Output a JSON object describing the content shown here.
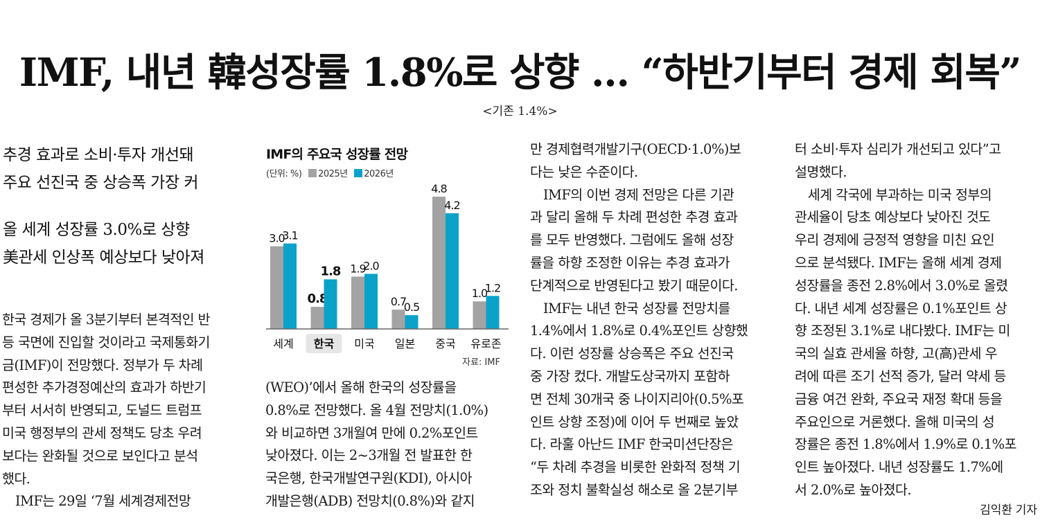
{
  "headline": "IMF, 내년 韓성장률 1.8%로 상향 … “하반기부터 경제 회복”",
  "subnote": "<기존 1.4%>",
  "deck1": [
    "추경 효과로 소비·투자 개선돼",
    "주요 선진국 중 상승폭 가장 커"
  ],
  "deck2": [
    "올 세계 성장률 3.0%로 상향",
    "美관세 인상폭 예상보다 낮아져"
  ],
  "column1": [
    "한국 경제가 올 3분기부터 본격적인 반",
    "등 국면에 진입할 것이라고 국제통화기",
    "금(IMF)이 전망했다. 정부가 두 차례",
    "편성한 추가경정예산의 효과가 하반기",
    "부터 서서히 반영되고, 도널드 트럼프",
    "미국 행정부의 관세 정책도 당초 우려",
    "보다는 완화될 것으로 보인다고 분석",
    "했다.",
    "　IMF는 29일 ‘7월 세계경제전망"
  ],
  "column2": [
    "(WEO)’에서 올해 한국의 성장률을",
    "0.8%로 전망했다. 올 4월 전망치(1.0%)",
    "와 비교하면 3개월여 만에 0.2%포인트",
    "낮아졌다. 이는 2~3개월 전 발표한 한",
    "국은행, 한국개발연구원(KDI), 아시아",
    "개발은행(ADB) 전망치(0.8%)와 같지"
  ],
  "column3": [
    "만 경제협력개발기구(OECD·1.0%)보",
    "다는 낮은 수준이다.",
    "　IMF의 이번 경제 전망은 다른 기관",
    "과 달리 올해 두 차례 편성한 추경 효과",
    "를 모두 반영했다. 그럼에도 올해 성장",
    "률을 하향 조정한 이유는 추경 효과가",
    "단계적으로 반영된다고 봤기 때문이다.",
    "　IMF는 내년 한국 성장률 전망치를",
    "1.4%에서 1.8%로 0.4%포인트 상향했",
    "다. 이런 성장률 상승폭은 주요 선진국",
    "중 가장 컸다. 개발도상국까지 포함하",
    "면 전체 30개국 중 나이지리아(0.5%포",
    "인트 상향 조정)에 이어 두 번째로 높았",
    "다. 라훌 아난드 IMF 한국미션단장은",
    "“두 차례 추경을 비롯한 완화적 정책 기",
    "조와 정치 불확실성 해소로 올 2분기부"
  ],
  "column4": [
    "터 소비·투자 심리가 개선되고 있다”고",
    "설명했다.",
    "　세계 각국에 부과하는 미국 정부의",
    "관세율이 당초 예상보다 낮아진 것도",
    "우리 경제에 긍정적 영향을 미친 요인",
    "으로 분석됐다. IMF는 올해 세계 경제",
    "성장률을 종전 2.8%에서 3.0%로 올렸",
    "다. 내년 세계 성장률은 0.1%포인트 상",
    "향 조정된 3.1%로 내다봤다. IMF는 미",
    "국의 실효 관세율 하향, 고(高)관세 우",
    "려에 따른 조기 선적 증가, 달러 약세 등",
    "금융 여건 완화, 주요국 재정 확대 등을",
    "주요인으로 거론했다. 올해 미국의 성",
    "장률은 종전 1.8%에서 1.9%로 0.1%포",
    "인트 높아졌다. 내년 성장률도 1.7%에",
    "서 2.0%로 높아졌다."
  ],
  "byline": "김익환 기자",
  "chart_data": {
    "type": "bar",
    "title": "IMF의 주요국 성장률 전망",
    "unit_label": "(단위: %)",
    "categories": [
      "세계",
      "한국",
      "미국",
      "일본",
      "중국",
      "유로존"
    ],
    "highlight_category": "한국",
    "series": [
      {
        "name": "2025년",
        "values": [
          3.0,
          0.8,
          1.9,
          0.7,
          4.8,
          1.0
        ],
        "color": "#a3a3a3"
      },
      {
        "name": "2026년",
        "values": [
          3.1,
          1.8,
          2.0,
          0.5,
          4.2,
          1.2
        ],
        "color": "#0aa2c9"
      }
    ],
    "ylim": [
      0,
      4.8
    ],
    "grid": false,
    "legend": "top-left",
    "source": "자료: IMF"
  }
}
